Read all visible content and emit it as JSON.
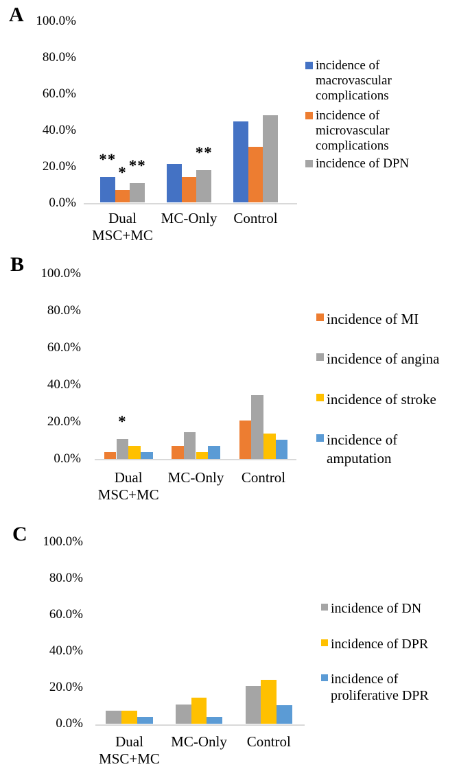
{
  "figure_title": "",
  "chart_data": [
    {
      "panel": "A",
      "type": "bar",
      "unit": "percent",
      "categories": [
        "Dual MSC+MC",
        "MC-Only",
        "Control"
      ],
      "categories_display": [
        [
          "Dual",
          "MSC+MC"
        ],
        [
          "MC-Only"
        ],
        [
          "Control"
        ]
      ],
      "ylim": [
        0,
        100
      ],
      "yticks": [
        "100.0%",
        "80.0%",
        "60.0%",
        "40.0%",
        "20.0%",
        "0.0%"
      ],
      "grid": false,
      "legend_position": "right",
      "series": [
        {
          "name": "incidence of macrovascular complications",
          "name_lines": [
            "incidence of",
            "macrovascular",
            "complications"
          ],
          "color": "#4472C4",
          "values": [
            14.3,
            21.4,
            44.8
          ]
        },
        {
          "name": "incidence of microvascular complications",
          "name_lines": [
            "incidence of",
            "microvascular",
            "complications"
          ],
          "color": "#ED7D31",
          "values": [
            7.1,
            14.3,
            31.0
          ]
        },
        {
          "name": "incidence of DPN",
          "name_lines": [
            "incidence of DPN"
          ],
          "color": "#A5A5A5",
          "values": [
            10.7,
            17.9,
            48.3
          ]
        }
      ],
      "annotations": [
        {
          "text": "**",
          "category": 0,
          "series": 0
        },
        {
          "text": "*",
          "category": 0,
          "series": 1
        },
        {
          "text": "**",
          "category": 0,
          "series": 2
        },
        {
          "text": "**",
          "category": 1,
          "series": 2
        }
      ]
    },
    {
      "panel": "B",
      "type": "bar",
      "unit": "percent",
      "categories": [
        "Dual MSC+MC",
        "MC-Only",
        "Control"
      ],
      "categories_display": [
        [
          "Dual",
          "MSC+MC"
        ],
        [
          "MC-Only"
        ],
        [
          "Control"
        ]
      ],
      "ylim": [
        0,
        100
      ],
      "yticks": [
        "100.0%",
        "80.0%",
        "60.0%",
        "40.0%",
        "20.0%",
        "0.0%"
      ],
      "grid": false,
      "legend_position": "right",
      "series": [
        {
          "name": "incidence of MI",
          "name_lines": [
            "incidence of MI"
          ],
          "color": "#ED7D31",
          "values": [
            3.6,
            7.1,
            20.7
          ]
        },
        {
          "name": "incidence of angina",
          "name_lines": [
            "incidence of angina"
          ],
          "color": "#A5A5A5",
          "values": [
            10.7,
            14.3,
            34.5
          ]
        },
        {
          "name": "incidence of stroke",
          "name_lines": [
            "incidence of stroke"
          ],
          "color": "#FFC000",
          "values": [
            7.1,
            3.6,
            13.8
          ]
        },
        {
          "name": "incidence of amputation",
          "name_lines": [
            "incidence of",
            "amputation"
          ],
          "color": "#5B9BD5",
          "values": [
            3.6,
            7.1,
            10.3
          ]
        }
      ],
      "annotations": [
        {
          "text": "*",
          "category": 0,
          "series": 1
        }
      ]
    },
    {
      "panel": "C",
      "type": "bar",
      "unit": "percent",
      "categories": [
        "Dual MSC+MC",
        "MC-Only",
        "Control"
      ],
      "categories_display": [
        [
          "Dual",
          "MSC+MC"
        ],
        [
          "MC-Only"
        ],
        [
          "Control"
        ]
      ],
      "ylim": [
        0,
        100
      ],
      "yticks": [
        "100.0%",
        "80.0%",
        "60.0%",
        "40.0%",
        "20.0%",
        "0.0%"
      ],
      "grid": false,
      "legend_position": "right",
      "series": [
        {
          "name": "incidence of DN",
          "name_lines": [
            "incidence of DN"
          ],
          "color": "#A5A5A5",
          "values": [
            7.1,
            10.7,
            20.7
          ]
        },
        {
          "name": "incidence of DPR",
          "name_lines": [
            "incidence of DPR"
          ],
          "color": "#FFC000",
          "values": [
            7.1,
            14.3,
            24.1
          ]
        },
        {
          "name": "incidence of proliferative DPR",
          "name_lines": [
            "incidence of",
            "proliferative DPR"
          ],
          "color": "#5B9BD5",
          "values": [
            3.6,
            3.6,
            10.3
          ]
        }
      ],
      "annotations": []
    }
  ],
  "colors": {
    "axis_line": "#D9D9D9",
    "text": "#000000"
  }
}
